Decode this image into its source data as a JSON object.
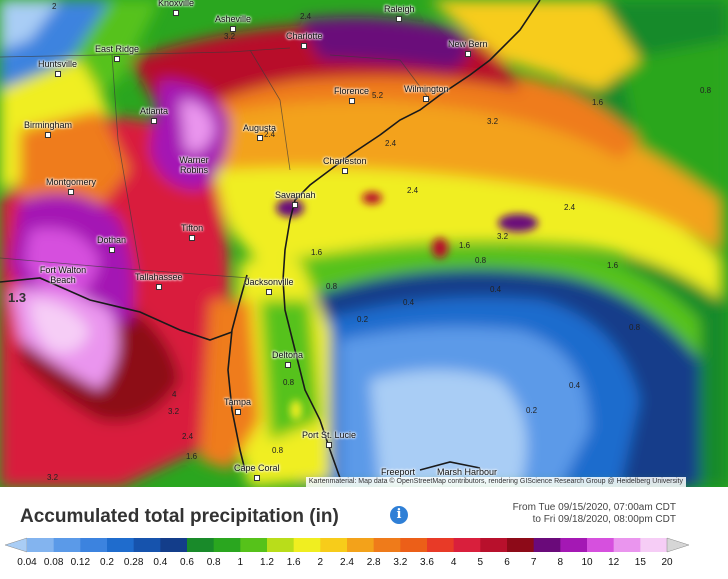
{
  "map": {
    "cities": [
      {
        "name": "Knoxville"
      },
      {
        "name": "Asheville"
      },
      {
        "name": "Raleigh"
      },
      {
        "name": "Charlotte"
      },
      {
        "name": "East Ridge"
      },
      {
        "name": "Huntsville"
      },
      {
        "name": "New Bern"
      },
      {
        "name": "Atlanta"
      },
      {
        "name": "Florence"
      },
      {
        "name": "Wilmington"
      },
      {
        "name": "Birmingham"
      },
      {
        "name": "Augusta"
      },
      {
        "name": "Warner Robins"
      },
      {
        "name": "Charleston"
      },
      {
        "name": "Montgomery"
      },
      {
        "name": "Savannah"
      },
      {
        "name": "Tifton"
      },
      {
        "name": "Dothan"
      },
      {
        "name": "Fort Walton Beach"
      },
      {
        "name": "Tallahassee"
      },
      {
        "name": "Jacksonville"
      },
      {
        "name": "Deltona"
      },
      {
        "name": "Tampa"
      },
      {
        "name": "Port St. Lucie"
      },
      {
        "name": "Cape Coral"
      },
      {
        "name": "Freeport"
      },
      {
        "name": "Marsh Harbour"
      }
    ],
    "contour_labels": [
      "2",
      "2.4",
      "3.2",
      "5.2",
      "1.6",
      "0.8",
      "2.4",
      "3.2",
      "2.4",
      "2.4",
      "3.2",
      "2.4",
      "1.6",
      "0.8",
      "1.6",
      "0.8",
      "0.4",
      "0.2",
      "0.4",
      "0.8",
      "0.4",
      "0.2",
      "0.8",
      "4",
      "3.2",
      "2.4",
      "1.6",
      "0.8",
      "3.2",
      "1.3",
      "1.6"
    ],
    "attribution": "Kartenmaterial: Map data © OpenStreetMap contributors, rendering GIScience Research Group @ Heidelberg University"
  },
  "header": {
    "title": "Accumulated total precipitation (in)",
    "range_from": "From Tue 09/15/2020, 07:00am CDT",
    "range_to": "to Fri 09/18/2020, 08:00pm CDT"
  },
  "legend": {
    "labels": [
      "0.04",
      "0.08",
      "0.12",
      "0.2",
      "0.28",
      "0.4",
      "0.6",
      "0.8",
      "1",
      "1.2",
      "1.6",
      "2",
      "2.4",
      "2.8",
      "3.2",
      "3.6",
      "4",
      "5",
      "6",
      "7",
      "8",
      "10",
      "12",
      "15",
      "20"
    ],
    "colors": [
      "#a9cdf5",
      "#83b4ef",
      "#5b9ae8",
      "#3c83df",
      "#1f6ccd",
      "#1653ad",
      "#133d8a",
      "#198a2a",
      "#2aa61f",
      "#56c21a",
      "#b9dd1a",
      "#f0ee20",
      "#f7cc1a",
      "#f3a21a",
      "#ef7b1a",
      "#ec5f18",
      "#e83a27",
      "#d91f3c",
      "#b8102c",
      "#8d0a18",
      "#6a0a7a",
      "#a418b4",
      "#d650de",
      "#ea95ee",
      "#f6cdf6",
      "#d6d6d6"
    ]
  }
}
